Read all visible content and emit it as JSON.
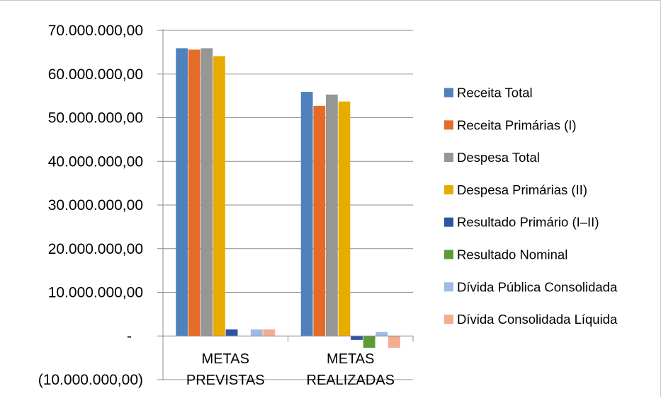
{
  "chart_data": {
    "type": "bar",
    "categories": [
      [
        "METAS",
        "PREVISTAS"
      ],
      [
        "METAS",
        "REALIZADAS"
      ]
    ],
    "series": [
      {
        "name": "Receita Total",
        "color": "#4f81bd",
        "values": [
          65900000,
          55900000
        ]
      },
      {
        "name": "Receita Primárias (I)",
        "color": "#e46c27",
        "values": [
          65600000,
          52700000
        ]
      },
      {
        "name": "Despesa Total",
        "color": "#969696",
        "values": [
          65900000,
          55300000
        ]
      },
      {
        "name": "Despesa Primárias (II)",
        "color": "#e8ac00",
        "values": [
          64100000,
          53700000
        ]
      },
      {
        "name": "Resultado Primário (I–II)",
        "color": "#2e55a3",
        "values": [
          1500000,
          -900000
        ]
      },
      {
        "name": "Resultado Nominal",
        "color": "#5e9a35",
        "values": [
          0,
          -2700000
        ]
      },
      {
        "name": "Dívida Pública Consolidada",
        "color": "#9dbbe3",
        "values": [
          1500000,
          900000
        ]
      },
      {
        "name": "Dívida Consolidada Líquida",
        "color": "#f4ac91",
        "values": [
          1500000,
          -2700000
        ]
      }
    ],
    "y_ticks": [
      {
        "value": 70000000,
        "label": "70.000.000,00"
      },
      {
        "value": 60000000,
        "label": "60.000.000,00"
      },
      {
        "value": 50000000,
        "label": "50.000.000,00"
      },
      {
        "value": 40000000,
        "label": "40.000.000,00"
      },
      {
        "value": 30000000,
        "label": "30.000.000,00"
      },
      {
        "value": 20000000,
        "label": "20.000.000,00"
      },
      {
        "value": 10000000,
        "label": "10.000.000,00"
      },
      {
        "value": 0,
        "label": "-"
      },
      {
        "value": -10000000,
        "label": "(10.000.000,00)"
      }
    ],
    "ylim": [
      -10000000,
      70000000
    ],
    "grid": true,
    "legend_position": "right",
    "title": "",
    "xlabel": "",
    "ylabel": ""
  }
}
